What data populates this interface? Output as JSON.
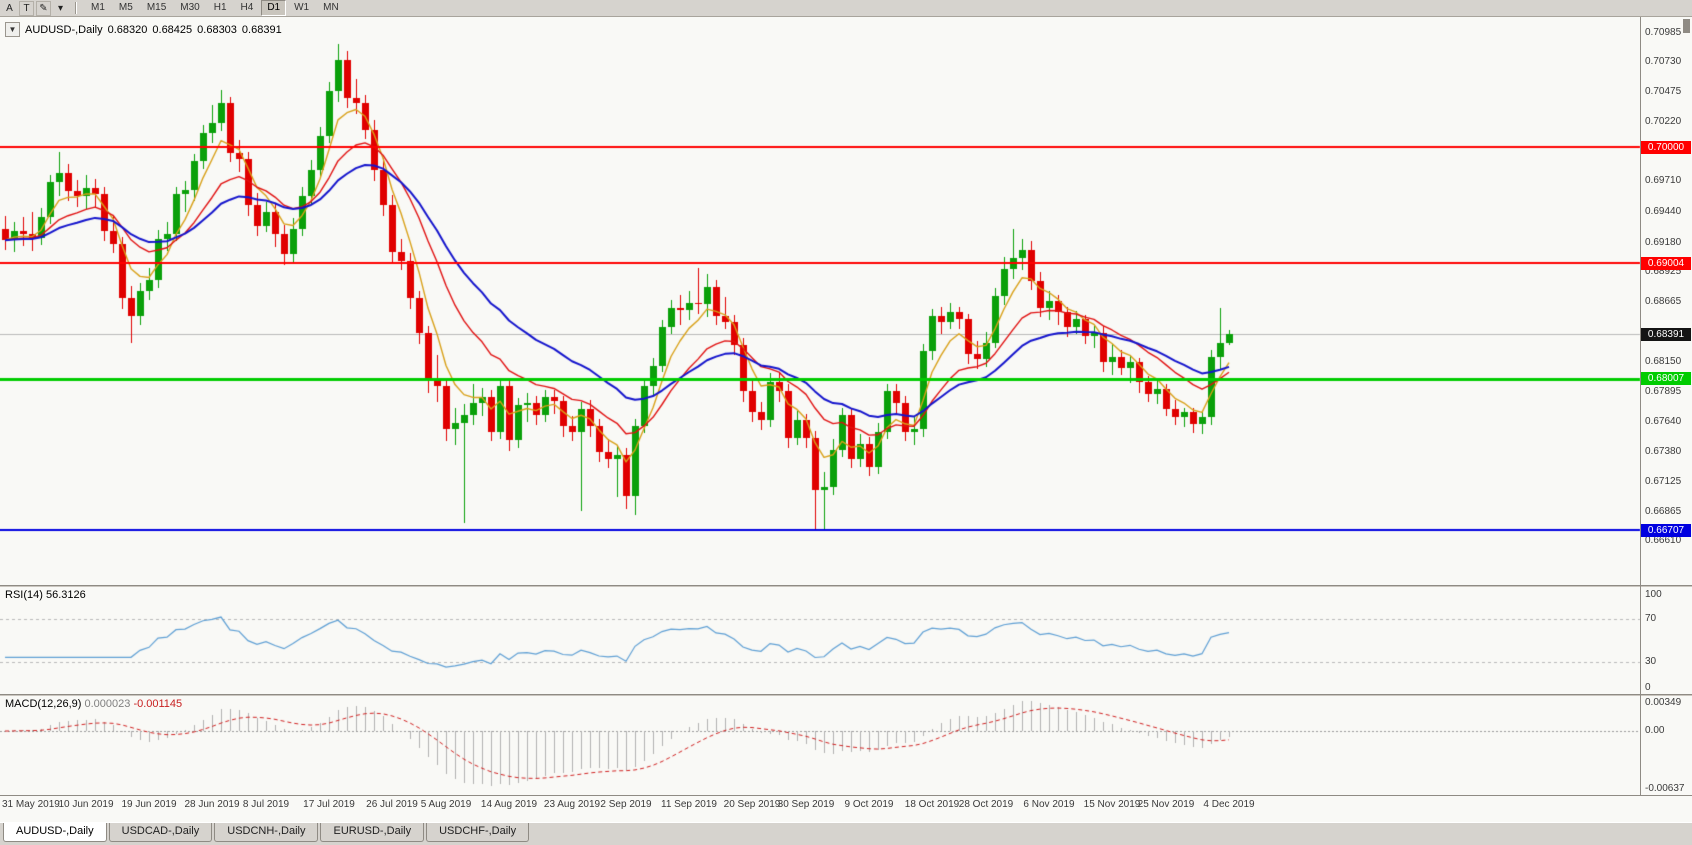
{
  "toolbar": {
    "left_tools": [
      {
        "name": "arrow-tools-button",
        "glyph": "A",
        "plain": true
      },
      {
        "name": "text-tool-button",
        "glyph": "T",
        "plain": false
      },
      {
        "name": "draw-tool-button",
        "glyph": "✎",
        "plain": false
      },
      {
        "name": "draw-tool-dropdown",
        "glyph": "▾",
        "plain": true
      }
    ],
    "timeframes": [
      "M1",
      "M5",
      "M15",
      "M30",
      "H1",
      "H4",
      "D1",
      "W1",
      "MN"
    ],
    "selected_timeframe": "D1"
  },
  "chart_header": {
    "collapse_icon": "▼",
    "symbol": "AUDUSD-,Daily",
    "open": "0.68320",
    "high": "0.68425",
    "low": "0.68303",
    "close": "0.68391"
  },
  "price_axis": {
    "labels": [
      "0.70985",
      "0.70730",
      "0.70475",
      "0.70220",
      "0.69965",
      "0.69710",
      "0.69440",
      "0.69180",
      "0.68925",
      "0.68665",
      "0.68150",
      "0.67895",
      "0.67640",
      "0.67380",
      "0.67125",
      "0.66865",
      "0.66610"
    ]
  },
  "hlines": [
    {
      "price": 0.7,
      "label": "0.70000",
      "color": "#ff0000",
      "width": 2
    },
    {
      "price": 0.69004,
      "label": "0.69004",
      "color": "#ff0000",
      "width": 2
    },
    {
      "price": 0.68007,
      "label": "0.68007",
      "color": "#00cc00",
      "width": 3
    },
    {
      "price": 0.66707,
      "label": "0.66707",
      "color": "#0000e0",
      "width": 2
    }
  ],
  "current_price": {
    "price": 0.68391,
    "label": "0.68391",
    "color": "#141414"
  },
  "rsi": {
    "name": "RSI(14)",
    "value": "56.3126",
    "period": 14,
    "color": "#5e9fd4",
    "levels": [
      {
        "label": "100",
        "value": 100,
        "line": false
      },
      {
        "label": "70",
        "value": 70,
        "line": true
      },
      {
        "label": "30",
        "value": 30,
        "line": true
      },
      {
        "label": "0",
        "value": 0,
        "line": false
      }
    ]
  },
  "macd": {
    "name": "MACD(12,26,9)",
    "main_value": "0.000023",
    "signal_value": "-0.001145",
    "fast": 12,
    "slow": 26,
    "signal": 9,
    "hist_color": "#b0b0b0",
    "signal_color": "#d02020",
    "scale": [
      {
        "label": "0.00349",
        "value": 0.00349
      },
      {
        "label": "0.00",
        "value": 0
      },
      {
        "label": "-0.00637",
        "value": -0.00637
      }
    ]
  },
  "date_axis": [
    {
      "label": "31 May 2019",
      "bar": 3
    },
    {
      "label": "10 Jun 2019",
      "bar": 9
    },
    {
      "label": "19 Jun 2019",
      "bar": 16
    },
    {
      "label": "28 Jun 2019",
      "bar": 23
    },
    {
      "label": "8 Jul 2019",
      "bar": 29
    },
    {
      "label": "17 Jul 2019",
      "bar": 36
    },
    {
      "label": "26 Jul 2019",
      "bar": 43
    },
    {
      "label": "5 Aug 2019",
      "bar": 49
    },
    {
      "label": "14 Aug 2019",
      "bar": 56
    },
    {
      "label": "23 Aug 2019",
      "bar": 63
    },
    {
      "label": "2 Sep 2019",
      "bar": 69
    },
    {
      "label": "11 Sep 2019",
      "bar": 76
    },
    {
      "label": "20 Sep 2019",
      "bar": 83
    },
    {
      "label": "30 Sep 2019",
      "bar": 89
    },
    {
      "label": "9 Oct 2019",
      "bar": 96
    },
    {
      "label": "18 Oct 2019",
      "bar": 103
    },
    {
      "label": "28 Oct 2019",
      "bar": 109
    },
    {
      "label": "6 Nov 2019",
      "bar": 116
    },
    {
      "label": "15 Nov 2019",
      "bar": 123
    },
    {
      "label": "25 Nov 2019",
      "bar": 129
    },
    {
      "label": "4 Dec 2019",
      "bar": 136
    }
  ],
  "tabs": [
    {
      "label": "AUDUSD-,Daily",
      "active": true
    },
    {
      "label": "USDCAD-,Daily",
      "active": false
    },
    {
      "label": "USDCNH-,Daily",
      "active": false
    },
    {
      "label": "EURUSD-,Daily",
      "active": false
    },
    {
      "label": "USDCHF-,Daily",
      "active": false
    }
  ],
  "chart_data": {
    "type": "candlestick",
    "symbol": "AUDUSD",
    "timeframe": "Daily",
    "price_range": {
      "top": 0.7112,
      "pixel_scale": 8.6e-05
    },
    "colors": {
      "bull": "#0aa00a",
      "bear": "#e00000",
      "current_line": "#b8b8b8"
    },
    "moving_averages": [
      {
        "period": 5,
        "color": "#d8a018"
      },
      {
        "period": 13,
        "color": "#e01010"
      },
      {
        "period": 24,
        "color": "#1414cc"
      }
    ],
    "ohlc": [
      [
        0.693,
        0.6941,
        0.6912,
        0.692
      ],
      [
        0.692,
        0.6936,
        0.691,
        0.6928
      ],
      [
        0.6928,
        0.694,
        0.6915,
        0.6925
      ],
      [
        0.6925,
        0.6944,
        0.6911,
        0.6922
      ],
      [
        0.6922,
        0.6948,
        0.6916,
        0.694
      ],
      [
        0.694,
        0.6976,
        0.6934,
        0.697
      ],
      [
        0.697,
        0.6996,
        0.6958,
        0.6978
      ],
      [
        0.6978,
        0.6986,
        0.6954,
        0.6962
      ],
      [
        0.6962,
        0.6972,
        0.6949,
        0.6958
      ],
      [
        0.6958,
        0.6976,
        0.6947,
        0.6965
      ],
      [
        0.6965,
        0.6973,
        0.6949,
        0.696
      ],
      [
        0.696,
        0.6966,
        0.6919,
        0.6928
      ],
      [
        0.6928,
        0.6941,
        0.6909,
        0.6917
      ],
      [
        0.6917,
        0.6923,
        0.6861,
        0.687
      ],
      [
        0.687,
        0.6881,
        0.6832,
        0.6855
      ],
      [
        0.6855,
        0.6883,
        0.6847,
        0.6876
      ],
      [
        0.6876,
        0.6896,
        0.6869,
        0.6886
      ],
      [
        0.6886,
        0.6929,
        0.6879,
        0.6921
      ],
      [
        0.6921,
        0.6936,
        0.6911,
        0.6925
      ],
      [
        0.6925,
        0.6966,
        0.6919,
        0.696
      ],
      [
        0.696,
        0.6971,
        0.6944,
        0.6963
      ],
      [
        0.6963,
        0.6994,
        0.6954,
        0.6988
      ],
      [
        0.6988,
        0.7019,
        0.6981,
        0.7012
      ],
      [
        0.7012,
        0.7036,
        0.7004,
        0.7021
      ],
      [
        0.7021,
        0.7049,
        0.7014,
        0.7038
      ],
      [
        0.7038,
        0.7043,
        0.6987,
        0.6995
      ],
      [
        0.6995,
        0.7006,
        0.6979,
        0.699
      ],
      [
        0.699,
        0.6996,
        0.6941,
        0.695
      ],
      [
        0.695,
        0.6961,
        0.6924,
        0.6932
      ],
      [
        0.6932,
        0.6953,
        0.6927,
        0.6944
      ],
      [
        0.6944,
        0.6951,
        0.6914,
        0.6925
      ],
      [
        0.6925,
        0.6933,
        0.6899,
        0.6908
      ],
      [
        0.6908,
        0.6939,
        0.6901,
        0.693
      ],
      [
        0.693,
        0.6966,
        0.6924,
        0.6958
      ],
      [
        0.6958,
        0.6989,
        0.6951,
        0.698
      ],
      [
        0.698,
        0.7017,
        0.6974,
        0.701
      ],
      [
        0.701,
        0.7056,
        0.7004,
        0.7048
      ],
      [
        0.7048,
        0.7089,
        0.7039,
        0.7075
      ],
      [
        0.7075,
        0.7083,
        0.7034,
        0.7042
      ],
      [
        0.7042,
        0.7059,
        0.7029,
        0.7038
      ],
      [
        0.7038,
        0.7045,
        0.7007,
        0.7015
      ],
      [
        0.7015,
        0.7023,
        0.6971,
        0.698
      ],
      [
        0.698,
        0.6991,
        0.6941,
        0.695
      ],
      [
        0.695,
        0.6959,
        0.6901,
        0.691
      ],
      [
        0.691,
        0.6921,
        0.6894,
        0.6902
      ],
      [
        0.6902,
        0.6909,
        0.6861,
        0.687
      ],
      [
        0.687,
        0.6876,
        0.6831,
        0.684
      ],
      [
        0.684,
        0.6846,
        0.6789,
        0.68
      ],
      [
        0.68,
        0.6821,
        0.6781,
        0.6795
      ],
      [
        0.6795,
        0.6799,
        0.6747,
        0.6758
      ],
      [
        0.6758,
        0.6776,
        0.6744,
        0.6763
      ],
      [
        0.6763,
        0.6779,
        0.6677,
        0.677
      ],
      [
        0.677,
        0.6796,
        0.6761,
        0.678
      ],
      [
        0.678,
        0.6793,
        0.6769,
        0.6785
      ],
      [
        0.6785,
        0.6791,
        0.6747,
        0.6755
      ],
      [
        0.6755,
        0.6801,
        0.6749,
        0.6795
      ],
      [
        0.6795,
        0.6799,
        0.6739,
        0.6748
      ],
      [
        0.6748,
        0.6784,
        0.6741,
        0.6778
      ],
      [
        0.6778,
        0.6789,
        0.6764,
        0.678
      ],
      [
        0.678,
        0.6786,
        0.6761,
        0.677
      ],
      [
        0.677,
        0.6791,
        0.6764,
        0.6785
      ],
      [
        0.6785,
        0.6791,
        0.6771,
        0.6782
      ],
      [
        0.6782,
        0.6786,
        0.6751,
        0.676
      ],
      [
        0.676,
        0.6769,
        0.6747,
        0.6755
      ],
      [
        0.6755,
        0.6781,
        0.6687,
        0.6775
      ],
      [
        0.6775,
        0.6783,
        0.6751,
        0.676
      ],
      [
        0.676,
        0.6766,
        0.6729,
        0.6738
      ],
      [
        0.6738,
        0.6749,
        0.6724,
        0.6732
      ],
      [
        0.6732,
        0.6743,
        0.6699,
        0.6735
      ],
      [
        0.6735,
        0.6741,
        0.6689,
        0.67
      ],
      [
        0.67,
        0.6766,
        0.6684,
        0.676
      ],
      [
        0.676,
        0.6801,
        0.6754,
        0.6795
      ],
      [
        0.6795,
        0.6819,
        0.6787,
        0.6812
      ],
      [
        0.6812,
        0.6851,
        0.6807,
        0.6845
      ],
      [
        0.6845,
        0.6869,
        0.6839,
        0.6862
      ],
      [
        0.6862,
        0.6873,
        0.6847,
        0.686
      ],
      [
        0.686,
        0.6876,
        0.6851,
        0.6866
      ],
      [
        0.6866,
        0.6896,
        0.6857,
        0.6865
      ],
      [
        0.6865,
        0.6891,
        0.6854,
        0.688
      ],
      [
        0.688,
        0.6886,
        0.6847,
        0.6855
      ],
      [
        0.6855,
        0.6871,
        0.6844,
        0.685
      ],
      [
        0.685,
        0.6856,
        0.6821,
        0.683
      ],
      [
        0.683,
        0.6836,
        0.6781,
        0.679
      ],
      [
        0.679,
        0.6799,
        0.6764,
        0.6772
      ],
      [
        0.6772,
        0.6781,
        0.6757,
        0.6765
      ],
      [
        0.6765,
        0.6806,
        0.6759,
        0.6798
      ],
      [
        0.6798,
        0.6807,
        0.6781,
        0.679
      ],
      [
        0.679,
        0.6796,
        0.6741,
        0.675
      ],
      [
        0.675,
        0.6773,
        0.6744,
        0.6765
      ],
      [
        0.6765,
        0.6771,
        0.6741,
        0.675
      ],
      [
        0.675,
        0.6756,
        0.6672,
        0.6705
      ],
      [
        0.6705,
        0.6721,
        0.66707,
        0.6708
      ],
      [
        0.6708,
        0.6749,
        0.6701,
        0.674
      ],
      [
        0.674,
        0.6776,
        0.6734,
        0.677
      ],
      [
        0.677,
        0.6776,
        0.6724,
        0.6732
      ],
      [
        0.6732,
        0.6753,
        0.6725,
        0.6745
      ],
      [
        0.6745,
        0.6751,
        0.6717,
        0.6725
      ],
      [
        0.6725,
        0.6763,
        0.6719,
        0.6755
      ],
      [
        0.6755,
        0.6796,
        0.6749,
        0.679
      ],
      [
        0.679,
        0.6796,
        0.6771,
        0.678
      ],
      [
        0.678,
        0.6786,
        0.6747,
        0.6755
      ],
      [
        0.6755,
        0.6769,
        0.6744,
        0.6758
      ],
      [
        0.6758,
        0.6831,
        0.6751,
        0.6825
      ],
      [
        0.6825,
        0.6861,
        0.6817,
        0.6855
      ],
      [
        0.6855,
        0.6863,
        0.6839,
        0.685
      ],
      [
        0.685,
        0.6866,
        0.6844,
        0.6858
      ],
      [
        0.6858,
        0.6863,
        0.6844,
        0.6852
      ],
      [
        0.6852,
        0.6857,
        0.6814,
        0.6822
      ],
      [
        0.6822,
        0.6833,
        0.6809,
        0.6818
      ],
      [
        0.6818,
        0.6841,
        0.6811,
        0.6832
      ],
      [
        0.6832,
        0.6879,
        0.6827,
        0.6872
      ],
      [
        0.6872,
        0.6906,
        0.6864,
        0.6895
      ],
      [
        0.6895,
        0.693,
        0.6887,
        0.6905
      ],
      [
        0.6905,
        0.6921,
        0.6894,
        0.6912
      ],
      [
        0.6912,
        0.6919,
        0.6877,
        0.6885
      ],
      [
        0.6885,
        0.6893,
        0.6854,
        0.6862
      ],
      [
        0.6862,
        0.6876,
        0.6851,
        0.6868
      ],
      [
        0.6868,
        0.6873,
        0.6847,
        0.6858
      ],
      [
        0.6858,
        0.6863,
        0.6837,
        0.6845
      ],
      [
        0.6845,
        0.6859,
        0.6839,
        0.6852
      ],
      [
        0.6852,
        0.6856,
        0.6831,
        0.6838
      ],
      [
        0.6838,
        0.6846,
        0.6827,
        0.684
      ],
      [
        0.684,
        0.6846,
        0.6807,
        0.6815
      ],
      [
        0.6815,
        0.6831,
        0.6804,
        0.682
      ],
      [
        0.682,
        0.6826,
        0.6804,
        0.681
      ],
      [
        0.681,
        0.6821,
        0.6797,
        0.6815
      ],
      [
        0.6815,
        0.6819,
        0.6789,
        0.6798
      ],
      [
        0.6798,
        0.6803,
        0.6781,
        0.6788
      ],
      [
        0.6788,
        0.6799,
        0.6779,
        0.6792
      ],
      [
        0.6792,
        0.6796,
        0.6769,
        0.6775
      ],
      [
        0.6775,
        0.6783,
        0.6761,
        0.6768
      ],
      [
        0.6768,
        0.6776,
        0.6759,
        0.6772
      ],
      [
        0.6772,
        0.6776,
        0.6754,
        0.6762
      ],
      [
        0.6762,
        0.6773,
        0.6753,
        0.6768
      ],
      [
        0.6768,
        0.6826,
        0.6761,
        0.682
      ],
      [
        0.682,
        0.6862,
        0.6809,
        0.6832
      ],
      [
        0.6832,
        0.68425,
        0.68303,
        0.68391
      ]
    ]
  }
}
